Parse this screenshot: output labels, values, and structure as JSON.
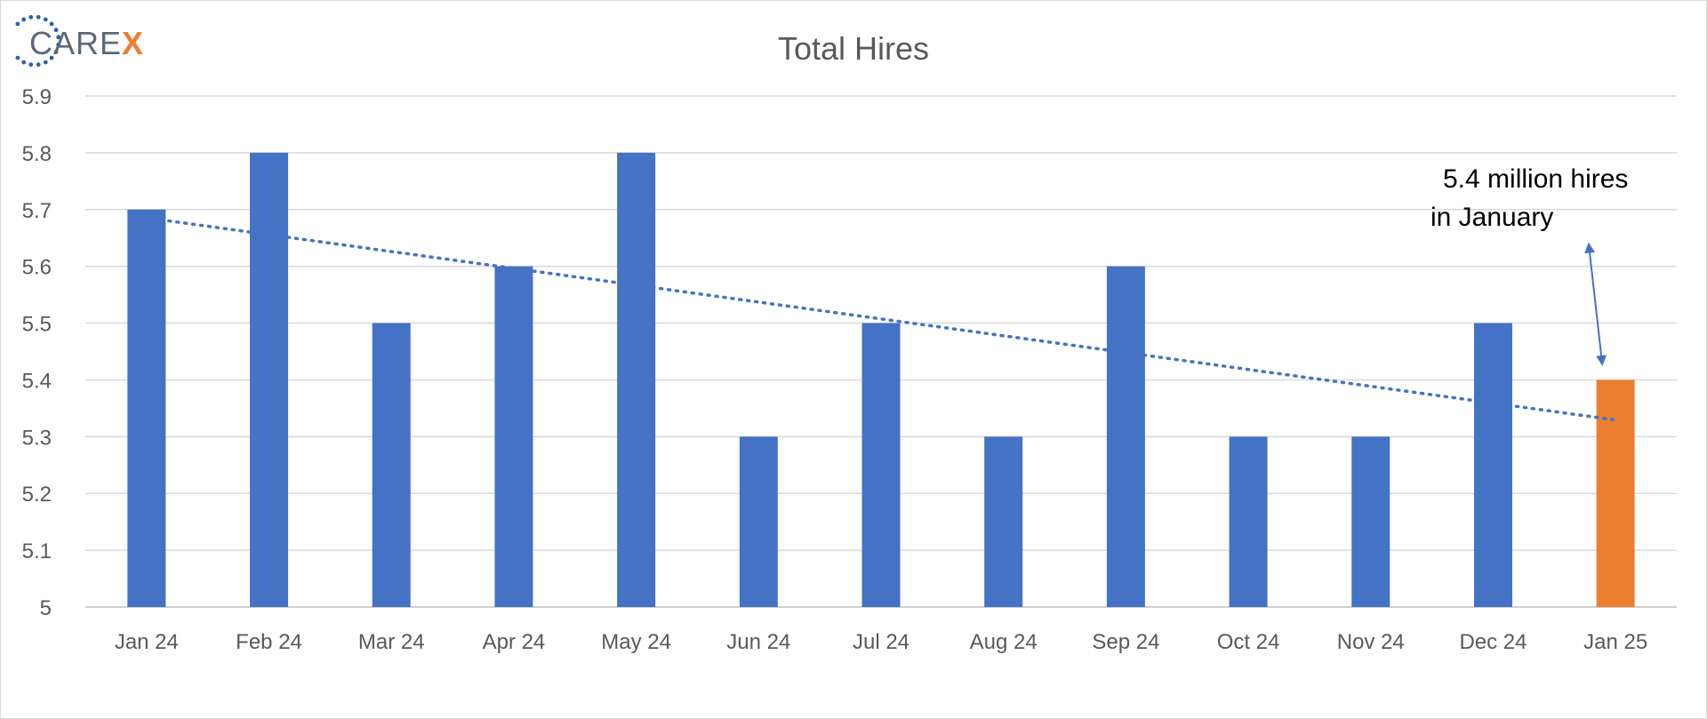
{
  "logo": {
    "text_main": "CARE",
    "text_accent": "X",
    "main_color": "#5a6a7a",
    "accent_color": "#ed7d31",
    "dots_color": "#2e5fa8"
  },
  "chart_data": {
    "type": "bar",
    "title": "Total Hires",
    "xlabel": "",
    "ylabel": "",
    "categories": [
      "Jan 24",
      "Feb 24",
      "Mar 24",
      "Apr 24",
      "May 24",
      "Jun 24",
      "Jul 24",
      "Aug 24",
      "Sep 24",
      "Oct 24",
      "Nov 24",
      "Dec 24",
      "Jan 25"
    ],
    "values": [
      5.7,
      5.8,
      5.5,
      5.6,
      5.8,
      5.3,
      5.5,
      5.3,
      5.6,
      5.3,
      5.3,
      5.5,
      5.4
    ],
    "highlight_index": 12,
    "bar_color": "#4472c4",
    "highlight_color": "#ed7d31",
    "ylim": [
      5,
      5.9
    ],
    "yticks": [
      "5",
      "5.1",
      "5.2",
      "5.3",
      "5.4",
      "5.5",
      "5.6",
      "5.7",
      "5.8",
      "5.9"
    ],
    "grid": true,
    "legend": "none",
    "trendline": {
      "type": "linear",
      "style": "dotted",
      "color": "#4472c4",
      "start_value": 5.68,
      "end_value": 5.33
    },
    "annotation": {
      "lines": [
        "5.4 million hires",
        "in January"
      ],
      "arrow_target_index": 12,
      "arrow_color": "#4472c4"
    }
  }
}
